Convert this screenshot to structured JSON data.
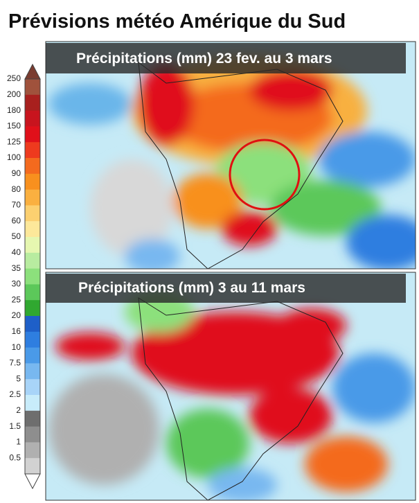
{
  "header": {
    "title": "Prévisions météo Amérique du Sud"
  },
  "panels": [
    {
      "title": "Précipitations (mm) 23 fev. au 3 mars"
    },
    {
      "title": "Précipitations (mm) 3 au 11 mars"
    }
  ],
  "legend": {
    "items": [
      {
        "label": "250",
        "color": "#a0523c"
      },
      {
        "label": "200",
        "color": "#a8201e"
      },
      {
        "label": "180",
        "color": "#c8141e"
      },
      {
        "label": "150",
        "color": "#e0101a"
      },
      {
        "label": "125",
        "color": "#ee3a1e"
      },
      {
        "label": "100",
        "color": "#f46a1e"
      },
      {
        "label": "90",
        "color": "#f8901e"
      },
      {
        "label": "80",
        "color": "#fab040"
      },
      {
        "label": "70",
        "color": "#fcd070"
      },
      {
        "label": "60",
        "color": "#fde89a"
      },
      {
        "label": "50",
        "color": "#e6f7b0"
      },
      {
        "label": "40",
        "color": "#b8eca0"
      },
      {
        "label": "35",
        "color": "#8ce07c"
      },
      {
        "label": "30",
        "color": "#5cc85a"
      },
      {
        "label": "25",
        "color": "#30a830"
      },
      {
        "label": "20",
        "color": "#1e5fc8"
      },
      {
        "label": "16",
        "color": "#2e7ee0"
      },
      {
        "label": "10",
        "color": "#4a9ae8"
      },
      {
        "label": "7.5",
        "color": "#78b8f0"
      },
      {
        "label": "5",
        "color": "#a8d4f8"
      },
      {
        "label": "2.5",
        "color": "#c8ecfa"
      },
      {
        "label": "2",
        "color": "#6e6e6e"
      },
      {
        "label": "1.5",
        "color": "#8e8e8e"
      },
      {
        "label": "1",
        "color": "#b0b0b0"
      },
      {
        "label": "0.5",
        "color": "#d2d2d2"
      }
    ]
  }
}
